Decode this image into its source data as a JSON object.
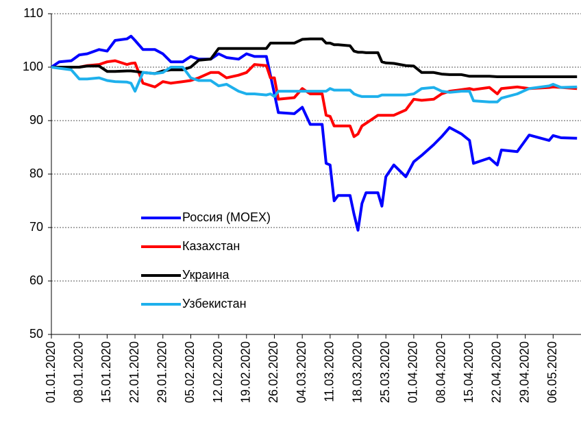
{
  "chart_data": {
    "type": "line",
    "x": [
      "01.01.2020",
      "03.01.2020",
      "06.01.2020",
      "08.01.2020",
      "10.01.2020",
      "13.01.2020",
      "15.01.2020",
      "17.01.2020",
      "20.01.2020",
      "21.01.2020",
      "22.01.2020",
      "24.01.2020",
      "27.01.2020",
      "29.01.2020",
      "31.01.2020",
      "03.02.2020",
      "05.02.2020",
      "07.02.2020",
      "10.02.2020",
      "12.02.2020",
      "14.02.2020",
      "17.02.2020",
      "19.02.2020",
      "21.02.2020",
      "24.02.2020",
      "25.02.2020",
      "26.02.2020",
      "27.02.2020",
      "02.03.2020",
      "04.03.2020",
      "06.03.2020",
      "09.03.2020",
      "10.03.2020",
      "11.03.2020",
      "12.03.2020",
      "13.03.2020",
      "16.03.2020",
      "17.03.2020",
      "18.03.2020",
      "19.03.2020",
      "20.03.2020",
      "23.03.2020",
      "24.03.2020",
      "25.03.2020",
      "27.03.2020",
      "30.03.2020",
      "01.04.2020",
      "03.04.2020",
      "06.04.2020",
      "08.04.2020",
      "10.04.2020",
      "13.04.2020",
      "15.04.2020",
      "16.04.2020",
      "20.04.2020",
      "22.04.2020",
      "23.04.2020",
      "27.04.2020",
      "30.04.2020",
      "05.05.2020",
      "06.05.2020",
      "08.05.2020",
      "12.05.2020"
    ],
    "series": [
      {
        "name": "Россия (MOEX)",
        "color": "#0000ff",
        "values": [
          100,
          101,
          101.2,
          102.3,
          102.5,
          103.3,
          103,
          105,
          105.3,
          105.8,
          105,
          103.3,
          103.3,
          102.5,
          101,
          101,
          102,
          101.5,
          101.5,
          102.5,
          101.8,
          101.5,
          102.5,
          102,
          102,
          98.5,
          95,
          91.5,
          91.3,
          92.5,
          89.3,
          89.3,
          82,
          81.7,
          75,
          76,
          76,
          72.5,
          69.5,
          74.5,
          76.5,
          76.5,
          74,
          79.5,
          81.7,
          79.5,
          82.3,
          83.5,
          85.5,
          87,
          88.7,
          87.5,
          86.3,
          82,
          83,
          81.7,
          84.5,
          84.2,
          87.3,
          86.3,
          87.2,
          86.8,
          86.7
        ]
      },
      {
        "name": "Казахстан",
        "color": "#ff0000",
        "values": [
          100,
          100,
          100,
          100,
          100.3,
          100.5,
          101,
          101.2,
          100.5,
          100.7,
          100.8,
          97,
          96.3,
          97.3,
          97,
          97.3,
          97.5,
          98,
          99,
          99,
          98,
          98.5,
          99,
          100.5,
          100.3,
          98,
          98,
          94,
          94.3,
          96,
          95,
          95,
          91,
          90.8,
          89,
          89,
          89,
          87,
          87.5,
          89,
          89.5,
          91,
          91,
          91,
          91,
          92,
          94,
          93.8,
          94,
          95,
          95.5,
          95.8,
          96,
          95.8,
          96.2,
          95,
          96,
          96.3,
          96,
          96.2,
          96.3,
          96.2,
          96
        ]
      },
      {
        "name": "Украина",
        "color": "#000000",
        "values": [
          100,
          100,
          100,
          100,
          100.2,
          100.2,
          99.2,
          99.2,
          99.3,
          99.3,
          99.2,
          99,
          98.8,
          99.3,
          99.5,
          99.5,
          100,
          101.3,
          101.5,
          103.5,
          103.5,
          103.5,
          103.5,
          103.5,
          103.5,
          104.5,
          104.5,
          104.5,
          104.5,
          105.2,
          105.3,
          105.3,
          104.5,
          104.5,
          104.2,
          104.2,
          104,
          103,
          102.8,
          102.8,
          102.7,
          102.7,
          101,
          100.8,
          100.7,
          100.3,
          100.2,
          99,
          99,
          98.7,
          98.6,
          98.6,
          98.3,
          98.3,
          98.3,
          98.2,
          98.2,
          98.2,
          98.2,
          98.2,
          98.2,
          98.2,
          98.2
        ]
      },
      {
        "name": "Узбекистан",
        "color": "#1eb0ec",
        "values": [
          100,
          99.8,
          99.5,
          97.8,
          97.8,
          98,
          97.5,
          97.3,
          97.2,
          97,
          95.5,
          99,
          98.8,
          99,
          100,
          100,
          98,
          97.5,
          97.5,
          96.5,
          96.8,
          95.5,
          95,
          95,
          94.8,
          95,
          94.5,
          95.5,
          95.5,
          95.5,
          95.5,
          95.5,
          95.5,
          96,
          95.7,
          95.7,
          95.7,
          95,
          94.7,
          94.5,
          94.5,
          94.5,
          94.8,
          94.8,
          94.8,
          94.8,
          95,
          96,
          96.2,
          95.5,
          95.3,
          95.5,
          95.5,
          93.7,
          93.5,
          93.5,
          94.2,
          95,
          96,
          96.5,
          96.8,
          96.2,
          96.3
        ]
      }
    ],
    "xlim": [
      "01.01.2020",
      "13.05.2020"
    ],
    "xticks": [
      "01.01.2020",
      "08.01.2020",
      "15.01.2020",
      "22.01.2020",
      "29.01.2020",
      "05.02.2020",
      "12.02.2020",
      "19.02.2020",
      "26.02.2020",
      "04.03.2020",
      "11.03.2020",
      "18.03.2020",
      "25.03.2020",
      "01.04.2020",
      "08.04.2020",
      "15.04.2020",
      "22.04.2020",
      "29.04.2020",
      "06.05.2020"
    ],
    "ylim": [
      50,
      110
    ],
    "yticks": [
      50,
      60,
      70,
      80,
      90,
      100,
      110
    ],
    "grid": true
  }
}
